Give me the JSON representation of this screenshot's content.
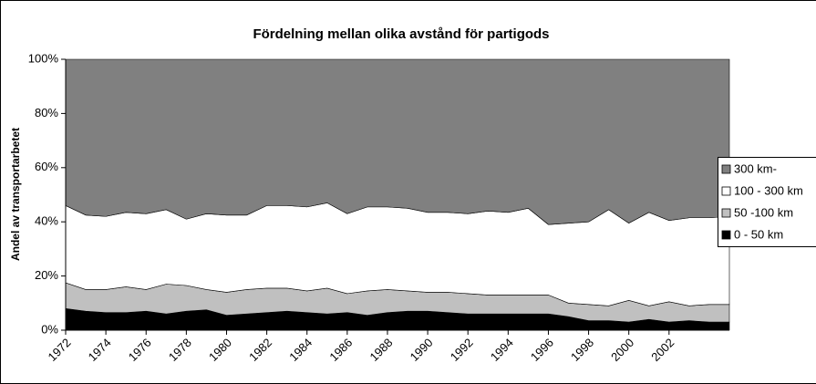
{
  "chart_data": {
    "type": "stacked-area",
    "title": "Fördelning mellan olika avstånd för partigods",
    "y_label": "Andel av transportarbetet",
    "x": [
      1972,
      1973,
      1974,
      1975,
      1976,
      1977,
      1978,
      1979,
      1980,
      1981,
      1982,
      1983,
      1984,
      1985,
      1986,
      1987,
      1988,
      1989,
      1990,
      1991,
      1992,
      1993,
      1994,
      1995,
      1996,
      1997,
      1998,
      1999,
      2000,
      2001,
      2002,
      2003,
      2004,
      2005
    ],
    "xlim": [
      1972,
      2005
    ],
    "xticks": [
      1972,
      1974,
      1976,
      1978,
      1980,
      1982,
      1984,
      1986,
      1988,
      1990,
      1992,
      1994,
      1996,
      1998,
      2000,
      2002
    ],
    "ylim": [
      0,
      100
    ],
    "yticks": [
      {
        "value": 0,
        "label": "0%"
      },
      {
        "value": 20,
        "label": "20%"
      },
      {
        "value": 40,
        "label": "40%"
      },
      {
        "value": 60,
        "label": "60%"
      },
      {
        "value": 80,
        "label": "80%"
      },
      {
        "value": 100,
        "label": "100%"
      }
    ],
    "legend": "right",
    "series": [
      {
        "name": "0 - 50 km",
        "color": "#000000",
        "values": [
          8,
          7,
          6.5,
          6.5,
          7,
          6,
          7,
          7.5,
          5.5,
          6,
          6.5,
          7,
          6.5,
          6,
          6.5,
          5.5,
          6.5,
          7,
          7,
          6.5,
          6,
          6,
          6,
          6,
          6,
          5,
          3.5,
          3.5,
          3,
          4,
          3,
          3.5,
          3,
          3
        ]
      },
      {
        "name": "50 -100 km",
        "color": "#c0c0c0",
        "values": [
          9.5,
          8,
          8.5,
          9.5,
          8,
          11,
          9.5,
          7.5,
          8.5,
          9,
          9,
          8.5,
          8,
          9.5,
          7,
          9,
          8.5,
          7.5,
          7,
          7.5,
          7.5,
          7,
          7,
          7,
          7,
          5,
          6,
          5.5,
          8,
          5,
          7.5,
          5.5,
          6.5,
          6.5
        ]
      },
      {
        "name": "100 - 300 km",
        "color": "#ffffff",
        "values": [
          28.5,
          27.5,
          27,
          27.5,
          28,
          27.5,
          24.5,
          28,
          28.5,
          27.5,
          30.5,
          30.5,
          31,
          31.5,
          29.5,
          31,
          30.5,
          30.5,
          29.5,
          29.5,
          29.5,
          31,
          30.5,
          32,
          26,
          29.5,
          30.5,
          35.5,
          28.5,
          34.5,
          30,
          32.5,
          32,
          32.5
        ]
      },
      {
        "name": "300 km-",
        "color": "#808080",
        "values": [
          54,
          57.5,
          58,
          56.5,
          57,
          55.5,
          59,
          57,
          57.5,
          57.5,
          54,
          54,
          54.5,
          53,
          57,
          54.5,
          54.5,
          55,
          56.5,
          56.5,
          57,
          56,
          56.5,
          55,
          61,
          60.5,
          60,
          55.5,
          60.5,
          56.5,
          59.5,
          58.5,
          58.5,
          58
        ]
      }
    ]
  }
}
